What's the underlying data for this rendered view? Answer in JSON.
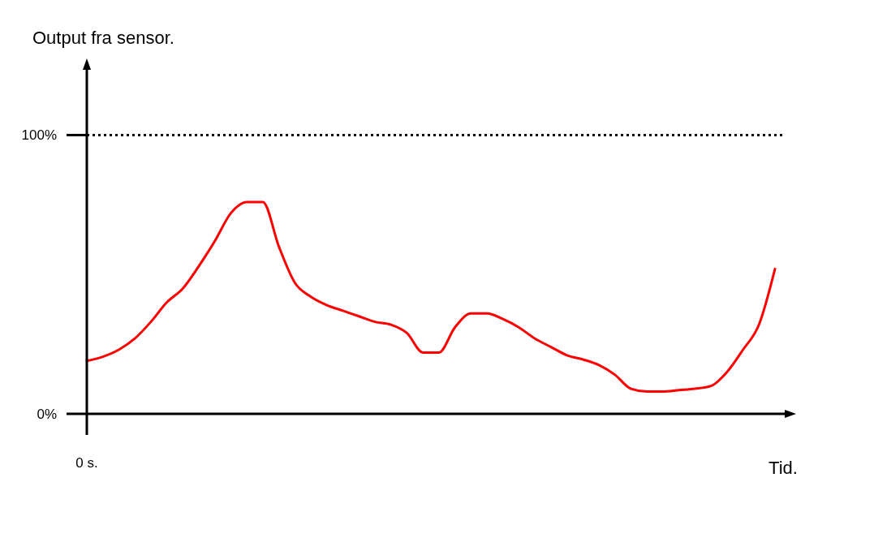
{
  "chart_data": {
    "type": "line",
    "title": "Output fra sensor.",
    "xlabel": "Tid.",
    "annotations": [
      "0 s."
    ],
    "categories": [
      null,
      null,
      null,
      null,
      null,
      null,
      null,
      null,
      null,
      null,
      null,
      null,
      null,
      null,
      null,
      null,
      null,
      null,
      null,
      null,
      null,
      null,
      null,
      null,
      null,
      null,
      null,
      null,
      null,
      null,
      null,
      null,
      null,
      null,
      null,
      null,
      null,
      null,
      null,
      null,
      null,
      null,
      null,
      null
    ],
    "series": [
      {
        "color": "#ff0000",
        "values": [
          19,
          20.5,
          23,
          27,
          33,
          40,
          45,
          53,
          62,
          72,
          76,
          76,
          60,
          47,
          42,
          39,
          37,
          35,
          33,
          32,
          29,
          22,
          22,
          31,
          36,
          36,
          34,
          31,
          27,
          24,
          21,
          19.5,
          17.5,
          14,
          9,
          8,
          8,
          8.5,
          9,
          10,
          15,
          23,
          32,
          52
        ]
      }
    ],
    "ylim": [
      0,
      124
    ],
    "yticks": [
      {
        "value": 0,
        "label": "0%"
      },
      {
        "value": 100,
        "label": "100%"
      }
    ],
    "ref_lines": [
      {
        "axis": "y",
        "value": 100,
        "color": "#000000",
        "line_style": "dotted"
      }
    ],
    "grid": false,
    "marker": "none",
    "line_style": "solid"
  }
}
